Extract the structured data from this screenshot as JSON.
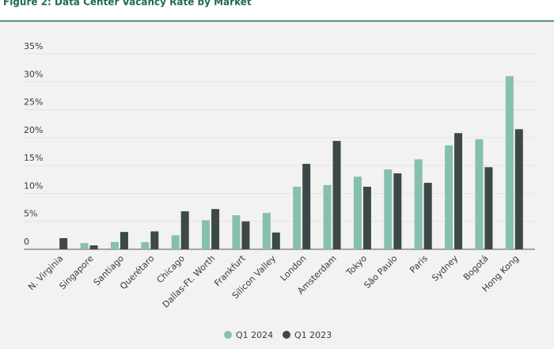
{
  "chart_data": {
    "type": "bar",
    "title": "Figure 2: Data Center Vacancy Rate by Market",
    "categories": [
      "N. Virginia",
      "Singapore",
      "Santiago",
      "Querétaro",
      "Chicago",
      "Dallas-Ft. Worth",
      "Frankfurt",
      "Silicon Valley",
      "London",
      "Amsterdam",
      "Tokyo",
      "São Paulo",
      "Paris",
      "Sydney",
      "Bogotá",
      "Hong Kong"
    ],
    "series": [
      {
        "name": "Q1 2024",
        "color": "#86bfae",
        "values": [
          0,
          1.1,
          1.3,
          1.3,
          2.5,
          5.2,
          6.1,
          6.5,
          11.2,
          11.5,
          13.0,
          14.3,
          16.1,
          18.6,
          19.7,
          31.0
        ]
      },
      {
        "name": "Q1 2023",
        "color": "#3d4949",
        "values": [
          2.0,
          0.7,
          3.1,
          3.2,
          6.8,
          7.2,
          5.0,
          3.0,
          15.3,
          19.4,
          11.2,
          13.6,
          11.9,
          20.8,
          14.7,
          21.5
        ]
      }
    ],
    "ylim": [
      0,
      35
    ],
    "yticks": [
      0,
      {
        "value": 5,
        "label": "5%"
      },
      {
        "value": 10,
        "label": "10%"
      },
      {
        "value": 15,
        "label": "15%"
      },
      {
        "value": 20,
        "label": "20%"
      },
      {
        "value": 25,
        "label": "25%"
      },
      {
        "value": 30,
        "label": "30%"
      },
      {
        "value": 35,
        "label": "35%"
      }
    ],
    "grid": true,
    "legend": "bottom"
  }
}
